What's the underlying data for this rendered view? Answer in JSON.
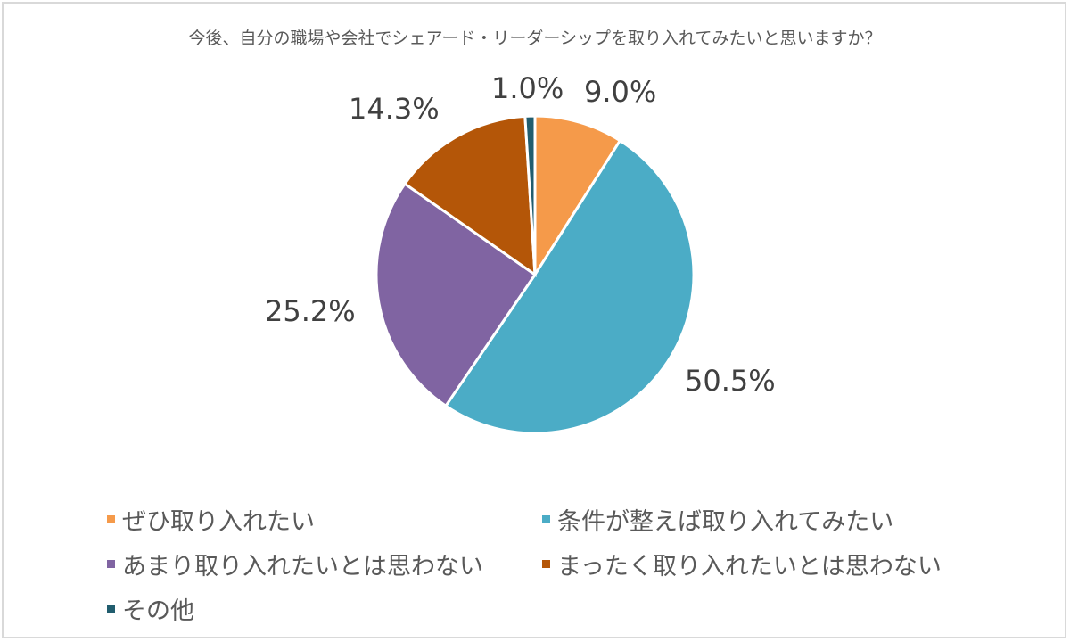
{
  "chart_data": {
    "type": "pie",
    "title": "今後、自分の職場や会社でシェアード・リーダーシップを取り入れてみたいと思いますか？",
    "categories": [
      "ぜひ取り入れたい",
      "条件が整えば取り入れてみたい",
      "あまり取り入れたいとは思わない",
      "まったく取り入れたいとは思わない",
      "その他"
    ],
    "values": [
      9.0,
      50.5,
      25.2,
      14.3,
      1.0
    ],
    "labels": [
      "9.0%",
      "50.5%",
      "25.2%",
      "14.3%",
      "1.0%"
    ],
    "colors": [
      "#f59a4a",
      "#4bacc6",
      "#8064a2",
      "#b45608",
      "#215d6e"
    ],
    "legend_position": "bottom"
  },
  "legend": [
    {
      "label": "ぜひ取り入れたい",
      "color": "#f59a4a"
    },
    {
      "label": "条件が整えば取り入れてみたい",
      "color": "#4bacc6"
    },
    {
      "label": "あまり取り入れたいとは思わない",
      "color": "#8064a2"
    },
    {
      "label": "まったく取り入れたいとは思わない",
      "color": "#b45608"
    },
    {
      "label": "その他",
      "color": "#215d6e"
    }
  ]
}
